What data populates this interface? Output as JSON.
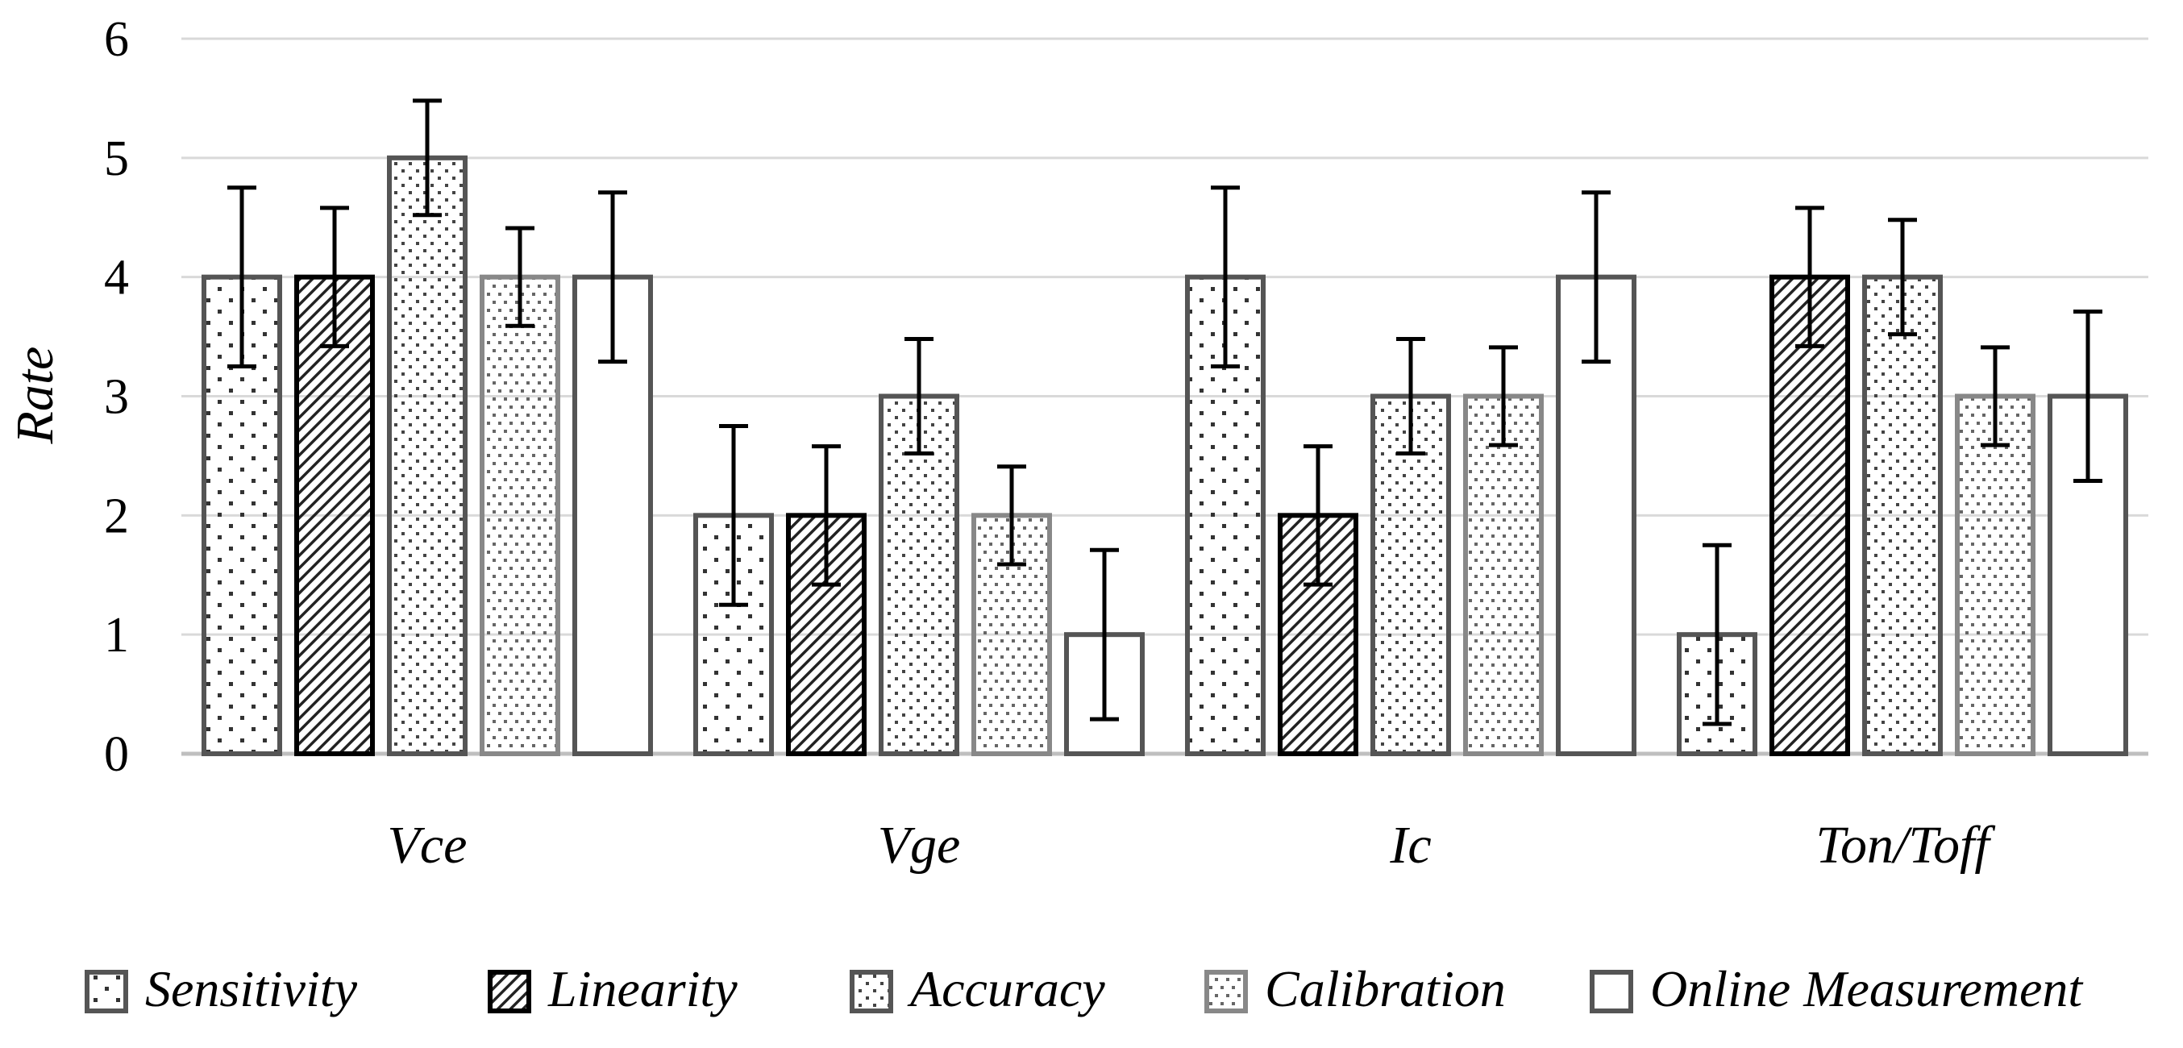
{
  "chart_data": {
    "type": "bar",
    "ylabel": "Rate",
    "xlabel": "",
    "ylim": [
      0,
      6
    ],
    "yticks": [
      "0",
      "1",
      "2",
      "3",
      "4",
      "5",
      "6"
    ],
    "grid": "horizontal",
    "legend_position": "bottom",
    "categories": [
      "Vce",
      "Vge",
      "Ic",
      "Ton/Toff"
    ],
    "series": [
      {
        "name": "Sensitivity",
        "pattern": "sparse-dots",
        "stroke": "#555555",
        "values": [
          4,
          2,
          4,
          1
        ],
        "errors": [
          0.75,
          0.75,
          0.75,
          0.75
        ]
      },
      {
        "name": "Linearity",
        "pattern": "diagonal-hatch",
        "stroke": "#000000",
        "values": [
          4,
          2,
          2,
          4
        ],
        "errors": [
          0.58,
          0.58,
          0.58,
          0.58
        ]
      },
      {
        "name": "Accuracy",
        "pattern": "medium-dots",
        "stroke": "#555555",
        "values": [
          5,
          3,
          3,
          4
        ],
        "errors": [
          0.48,
          0.48,
          0.48,
          0.48
        ]
      },
      {
        "name": "Calibration",
        "pattern": "dense-dots",
        "stroke": "#888888",
        "values": [
          4,
          2,
          3,
          3
        ],
        "errors": [
          0.41,
          0.41,
          0.41,
          0.41
        ]
      },
      {
        "name": "Online Measurement",
        "pattern": "none",
        "stroke": "#555555",
        "values": [
          4,
          1,
          4,
          3
        ],
        "errors": [
          0.71,
          0.71,
          0.71,
          0.71
        ]
      }
    ]
  }
}
